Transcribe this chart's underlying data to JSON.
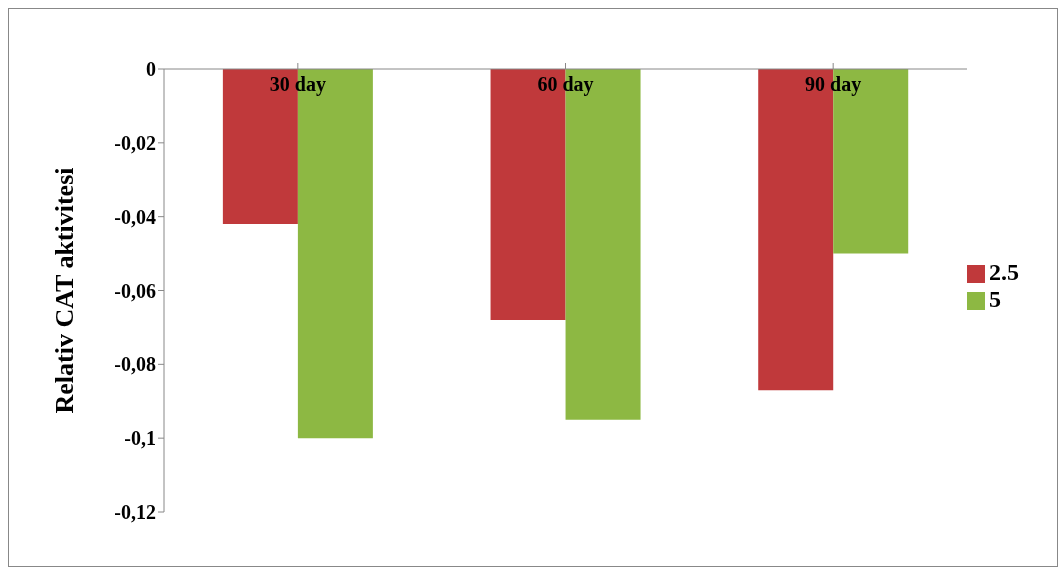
{
  "chart_data": {
    "type": "bar",
    "ylabel": "Relativ CAT aktivitesi",
    "categories": [
      "30 day",
      "60 day",
      "90 day"
    ],
    "series": [
      {
        "name": "2.5",
        "color": "#c0393b",
        "values": [
          -0.042,
          -0.068,
          -0.087
        ]
      },
      {
        "name": "5",
        "color": "#8db843",
        "values": [
          -0.1,
          -0.095,
          -0.05
        ]
      }
    ],
    "ylim": [
      -0.12,
      0
    ],
    "yticks": [
      {
        "value": -0.12,
        "label": "-0,12"
      },
      {
        "value": -0.1,
        "label": "-0,1"
      },
      {
        "value": -0.08,
        "label": "-0,08"
      },
      {
        "value": -0.06,
        "label": "-0,06"
      },
      {
        "value": -0.04,
        "label": "-0,04"
      },
      {
        "value": -0.02,
        "label": "-0,02"
      },
      {
        "value": 0,
        "label": "0"
      }
    ],
    "grid": false,
    "legend": "right"
  }
}
